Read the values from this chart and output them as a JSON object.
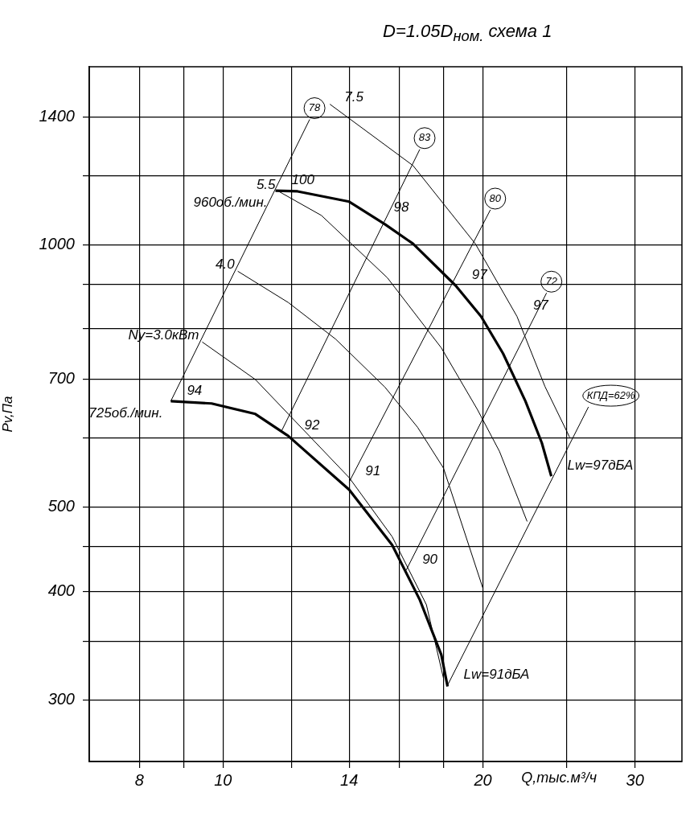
{
  "chart_data": {
    "type": "line",
    "title": "D=1.05D$_{ном.}$ схема 1",
    "xlabel": "Q,тыс.м³/ч",
    "ylabel": "Pv,Па",
    "log": "xy",
    "grid": true,
    "legend": false,
    "marker": "none",
    "line_style": "solid",
    "xlim": [
      7,
      34
    ],
    "ylim": [
      255,
      1600
    ],
    "xticks": [
      8,
      {
        "value": 9,
        "label": null
      },
      10,
      {
        "value": 12,
        "label": null
      },
      14,
      {
        "value": 16,
        "label": null
      },
      {
        "value": 18,
        "label": null
      },
      20,
      {
        "value": 25,
        "label": null
      },
      30
    ],
    "yticks": [
      300,
      {
        "value": 350,
        "label": null
      },
      400,
      {
        "value": 450,
        "label": null
      },
      500,
      {
        "value": 600,
        "label": null
      },
      700,
      {
        "value": 800,
        "label": null
      },
      {
        "value": 900,
        "label": null
      },
      1000,
      {
        "value": 1200,
        "label": null
      },
      1400
    ],
    "series": [
      {
        "name": "725об./мин.",
        "color": "#000000",
        "x": [
          8.7,
          9.7,
          10.9,
          11.9,
          14.0,
          15.7,
          16.9,
          17.9,
          18.2
        ],
        "values": [
          661,
          657,
          639,
          603,
          523,
          452,
          391,
          338,
          311
        ]
      },
      {
        "name": "960об./мин.",
        "color": "#000000",
        "x": [
          11.5,
          12.2,
          14.0,
          15.4,
          16.6,
          18.6,
          19.9,
          21.1,
          22.4,
          23.4,
          24.0
        ],
        "values": [
          1153,
          1151,
          1120,
          1055,
          1002,
          897,
          827,
          750,
          661,
          592,
          542
        ]
      },
      {
        "name": "Ny=3.0кВт",
        "color": "#000000",
        "x": [
          9.46,
          10.9,
          14.0,
          15.7,
          17.2,
          18.0
        ],
        "values": [
          773,
          700,
          540,
          462,
          386,
          318
        ]
      },
      {
        "name": "4.0",
        "color": "#000000",
        "x": [
          10.4,
          11.9,
          13.5,
          15.4,
          16.8,
          18.0,
          20.0
        ],
        "values": [
          932,
          858,
          779,
          686,
          617,
          554,
          403
        ]
      },
      {
        "name": "5.5",
        "color": "#000000",
        "x": [
          11.6,
          13.0,
          15.5,
          17.9,
          19.7,
          20.9,
          22.5
        ],
        "values": [
          1151,
          1080,
          916,
          761,
          647,
          579,
          481
        ]
      },
      {
        "name": "7.5",
        "color": "#000000",
        "x": [
          13.3,
          16.6,
          19.6,
          21.9,
          23.6,
          25.2
        ],
        "values": [
          1449,
          1232,
          1002,
          827,
          687,
          601
        ]
      },
      {
        "name": "78",
        "color": "#000000",
        "x": [
          8.7,
          12.6
        ],
        "values": [
          661,
          1392
        ]
      },
      {
        "name": "83",
        "color": "#000000",
        "x": [
          11.7,
          16.9
        ],
        "values": [
          612,
          1286
        ]
      },
      {
        "name": "80",
        "color": "#000000",
        "x": [
          14.0,
          20.4
        ],
        "values": [
          534,
          1096
        ]
      },
      {
        "name": "72",
        "color": "#000000",
        "x": [
          16.3,
          23.7
        ],
        "values": [
          423,
          880
        ]
      },
      {
        "name": "КПД=62%",
        "color": "#000000",
        "x": [
          18.2,
          26.5
        ],
        "values": [
          312,
          651
        ]
      }
    ],
    "annotations": [
      {
        "text": "94",
        "x": 8.7,
        "y": 661
      },
      {
        "text": "92",
        "x": 11.9,
        "y": 603
      },
      {
        "text": "91",
        "x": 14.0,
        "y": 534
      },
      {
        "text": "90",
        "x": 16.3,
        "y": 423
      },
      {
        "text": "Lw=91дБА",
        "x": 18.2,
        "y": 312
      },
      {
        "text": "100",
        "x": 11.5,
        "y": 1153
      },
      {
        "text": "98",
        "x": 15.1,
        "y": 1073
      },
      {
        "text": "97",
        "x": 18.6,
        "y": 897
      },
      {
        "text": "97",
        "x": 21.9,
        "y": 827
      },
      {
        "text": "Lw=97дБА",
        "x": 24.0,
        "y": 542
      }
    ]
  }
}
